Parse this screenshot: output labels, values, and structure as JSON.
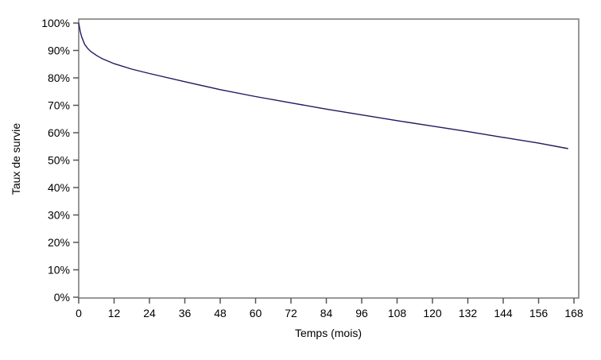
{
  "chart_data": {
    "type": "line",
    "title": "",
    "xlabel": "Temps (mois)",
    "ylabel": "Taux de survie",
    "xlim": [
      0,
      168
    ],
    "ylim": [
      0,
      100
    ],
    "xticks": [
      0,
      12,
      24,
      36,
      48,
      60,
      72,
      84,
      96,
      108,
      120,
      132,
      144,
      156,
      168
    ],
    "yticks": [
      0,
      10,
      20,
      30,
      40,
      50,
      60,
      70,
      80,
      90,
      100
    ],
    "ytick_labels": [
      "0%",
      "10%",
      "20%",
      "30%",
      "40%",
      "50%",
      "60%",
      "70%",
      "80%",
      "90%",
      "100%"
    ],
    "grid": false,
    "line_color": "#1f1a5e",
    "series": [
      {
        "x": [
          0,
          0.5,
          1,
          2,
          3,
          4,
          6,
          8,
          12,
          18,
          24,
          36,
          48,
          60,
          72,
          84,
          96,
          108,
          120,
          132,
          144,
          156,
          166
        ],
        "y": [
          100,
          97,
          95,
          92.3,
          90.8,
          89.7,
          88.2,
          87,
          85.2,
          83.2,
          81.6,
          78.6,
          75.7,
          73.2,
          70.9,
          68.6,
          66.5,
          64.4,
          62.4,
          60.4,
          58.3,
          56.2,
          54.2
        ]
      }
    ]
  }
}
